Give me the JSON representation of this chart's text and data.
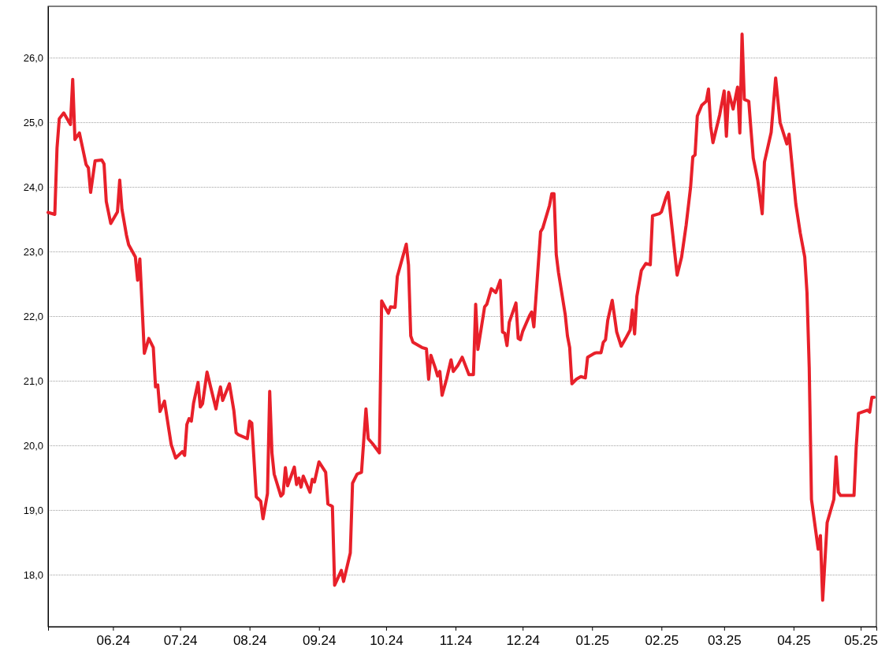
{
  "chart_data": {
    "type": "line",
    "xlim": [
      "2024-05-03",
      "2025-05-08"
    ],
    "ylim": [
      17.2,
      26.8
    ],
    "xticks": [
      {
        "value": "2024-06-01",
        "label": "06.24"
      },
      {
        "value": "2024-07-01",
        "label": "07.24"
      },
      {
        "value": "2024-08-01",
        "label": "08.24"
      },
      {
        "value": "2024-09-01",
        "label": "09.24"
      },
      {
        "value": "2024-10-01",
        "label": "10.24"
      },
      {
        "value": "2024-11-01",
        "label": "11.24"
      },
      {
        "value": "2024-12-01",
        "label": "12.24"
      },
      {
        "value": "2025-01-01",
        "label": "01.25"
      },
      {
        "value": "2025-02-01",
        "label": "02.25"
      },
      {
        "value": "2025-03-01",
        "label": "03.25"
      },
      {
        "value": "2025-04-01",
        "label": "04.25"
      },
      {
        "value": "2025-05-01",
        "label": "05.25"
      }
    ],
    "yticks": [
      {
        "value": 18,
        "label": "18,0"
      },
      {
        "value": 19,
        "label": "19,0"
      },
      {
        "value": 20,
        "label": "20,0"
      },
      {
        "value": 21,
        "label": "21,0"
      },
      {
        "value": 22,
        "label": "22,0"
      },
      {
        "value": 23,
        "label": "23,0"
      },
      {
        "value": 24,
        "label": "24,0"
      },
      {
        "value": 25,
        "label": "25,0"
      },
      {
        "value": 26,
        "label": "26,0"
      }
    ],
    "grid": "y",
    "legend": false,
    "marker": "none",
    "line_style": "solid",
    "x": [
      "2024-05-03",
      "2024-05-06",
      "2024-05-07",
      "2024-05-08",
      "2024-05-10",
      "2024-05-13",
      "2024-05-14",
      "2024-05-15",
      "2024-05-17",
      "2024-05-20",
      "2024-05-21",
      "2024-05-22",
      "2024-05-24",
      "2024-05-27",
      "2024-05-28",
      "2024-05-29",
      "2024-05-31",
      "2024-06-03",
      "2024-06-04",
      "2024-06-05",
      "2024-06-07",
      "2024-06-08",
      "2024-06-11",
      "2024-06-12",
      "2024-06-13",
      "2024-06-15",
      "2024-06-17",
      "2024-06-19",
      "2024-06-20",
      "2024-06-21",
      "2024-06-22",
      "2024-06-24",
      "2024-06-26",
      "2024-06-27",
      "2024-06-29",
      "2024-07-02",
      "2024-07-03",
      "2024-07-04",
      "2024-07-05",
      "2024-07-06",
      "2024-07-07",
      "2024-07-09",
      "2024-07-10",
      "2024-07-11",
      "2024-07-13",
      "2024-07-17",
      "2024-07-18",
      "2024-07-19",
      "2024-07-20",
      "2024-07-23",
      "2024-07-25",
      "2024-07-26",
      "2024-07-27",
      "2024-07-31",
      "2024-08-01",
      "2024-08-02",
      "2024-08-04",
      "2024-08-06",
      "2024-08-07",
      "2024-08-09",
      "2024-08-10",
      "2024-08-11",
      "2024-08-12",
      "2024-08-15",
      "2024-08-16",
      "2024-08-17",
      "2024-08-18",
      "2024-08-21",
      "2024-08-22",
      "2024-08-23",
      "2024-08-24",
      "2024-08-25",
      "2024-08-28",
      "2024-08-29",
      "2024-08-30",
      "2024-09-01",
      "2024-09-04",
      "2024-09-05",
      "2024-09-07",
      "2024-09-08",
      "2024-09-11",
      "2024-09-12",
      "2024-09-15",
      "2024-09-16",
      "2024-09-18",
      "2024-09-20",
      "2024-09-22",
      "2024-09-23",
      "2024-09-25",
      "2024-09-28",
      "2024-09-29",
      "2024-10-02",
      "2024-10-03",
      "2024-10-05",
      "2024-10-06",
      "2024-10-10",
      "2024-10-11",
      "2024-10-12",
      "2024-10-13",
      "2024-10-17",
      "2024-10-19",
      "2024-10-20",
      "2024-10-21",
      "2024-10-23",
      "2024-10-24",
      "2024-10-25",
      "2024-10-26",
      "2024-10-28",
      "2024-10-30",
      "2024-10-31",
      "2024-11-02",
      "2024-11-04",
      "2024-11-07",
      "2024-11-09",
      "2024-11-10",
      "2024-11-11",
      "2024-11-14",
      "2024-11-15",
      "2024-11-17",
      "2024-11-19",
      "2024-11-21",
      "2024-11-22",
      "2024-11-23",
      "2024-11-24",
      "2024-11-25",
      "2024-11-28",
      "2024-11-29",
      "2024-11-30",
      "2024-12-01",
      "2024-12-04",
      "2024-12-05",
      "2024-12-06",
      "2024-12-09",
      "2024-12-10",
      "2024-12-13",
      "2024-12-14",
      "2024-12-15",
      "2024-12-16",
      "2024-12-17",
      "2024-12-20",
      "2024-12-21",
      "2024-12-22",
      "2024-12-23",
      "2024-12-25",
      "2024-12-27",
      "2024-12-29",
      "2024-12-30",
      "2025-01-02",
      "2025-01-03",
      "2025-01-05",
      "2025-01-06",
      "2025-01-07",
      "2025-01-08",
      "2025-01-10",
      "2025-01-11",
      "2025-01-12",
      "2025-01-14",
      "2025-01-16",
      "2025-01-18",
      "2025-01-19",
      "2025-01-20",
      "2025-01-21",
      "2025-01-23",
      "2025-01-25",
      "2025-01-27",
      "2025-01-28",
      "2025-01-31",
      "2025-02-01",
      "2025-02-03",
      "2025-02-04",
      "2025-02-08",
      "2025-02-10",
      "2025-02-12",
      "2025-02-14",
      "2025-02-15",
      "2025-02-16",
      "2025-02-17",
      "2025-02-19",
      "2025-02-21",
      "2025-02-22",
      "2025-02-23",
      "2025-02-24",
      "2025-02-27",
      "2025-03-01",
      "2025-03-02",
      "2025-03-03",
      "2025-03-05",
      "2025-03-07",
      "2025-03-08",
      "2025-03-09",
      "2025-03-10",
      "2025-03-12",
      "2025-03-13",
      "2025-03-14",
      "2025-03-16",
      "2025-03-18",
      "2025-03-19",
      "2025-03-22",
      "2025-03-24",
      "2025-03-26",
      "2025-03-29",
      "2025-03-30",
      "2025-04-02",
      "2025-04-04",
      "2025-04-06",
      "2025-04-07",
      "2025-04-08",
      "2025-04-09",
      "2025-04-12",
      "2025-04-13",
      "2025-04-14",
      "2025-04-16",
      "2025-04-19",
      "2025-04-20",
      "2025-04-21",
      "2025-04-22",
      "2025-04-28",
      "2025-04-29",
      "2025-04-30",
      "2025-05-04",
      "2025-05-05",
      "2025-05-06",
      "2025-05-07"
    ],
    "series": [
      {
        "color": "#e8202a",
        "values": [
          23.61,
          23.58,
          24.61,
          25.06,
          25.15,
          24.97,
          25.67,
          24.74,
          24.84,
          24.35,
          24.3,
          23.92,
          24.41,
          24.42,
          24.36,
          23.78,
          23.44,
          23.62,
          24.11,
          23.66,
          23.26,
          23.11,
          22.92,
          22.56,
          22.89,
          21.43,
          21.66,
          21.52,
          20.91,
          20.94,
          20.53,
          20.69,
          20.24,
          20.02,
          19.81,
          19.91,
          19.85,
          20.33,
          20.42,
          20.38,
          20.66,
          20.98,
          20.6,
          20.65,
          21.14,
          20.57,
          20.76,
          20.91,
          20.7,
          20.96,
          20.54,
          20.2,
          20.17,
          20.11,
          20.38,
          20.35,
          19.21,
          19.14,
          18.87,
          19.26,
          20.84,
          19.89,
          19.56,
          19.22,
          19.26,
          19.66,
          19.38,
          19.67,
          19.4,
          19.5,
          19.36,
          19.53,
          19.28,
          19.48,
          19.44,
          19.75,
          19.59,
          19.1,
          19.06,
          17.84,
          18.07,
          17.9,
          18.34,
          19.42,
          19.56,
          19.59,
          20.57,
          20.11,
          20.03,
          19.89,
          22.24,
          22.05,
          22.15,
          22.14,
          22.62,
          23.12,
          22.8,
          21.7,
          21.6,
          21.52,
          21.5,
          21.03,
          21.4,
          21.2,
          21.08,
          21.15,
          20.78,
          21.03,
          21.33,
          21.15,
          21.24,
          21.37,
          21.1,
          21.1,
          22.19,
          21.49,
          22.15,
          22.19,
          22.43,
          22.37,
          22.56,
          21.76,
          21.74,
          21.55,
          21.91,
          22.21,
          21.66,
          21.64,
          21.77,
          22.01,
          22.07,
          21.84,
          23.31,
          23.37,
          23.72,
          23.9,
          23.9,
          22.96,
          22.68,
          22.03,
          21.7,
          21.52,
          20.96,
          21.03,
          21.07,
          21.05,
          21.37,
          21.43,
          21.44,
          21.44,
          21.6,
          21.64,
          21.94,
          22.25,
          22.01,
          21.76,
          21.54,
          21.66,
          21.79,
          22.1,
          21.73,
          22.31,
          22.71,
          22.82,
          22.8,
          23.56,
          23.59,
          23.62,
          23.84,
          23.92,
          22.64,
          22.92,
          23.41,
          24.0,
          24.47,
          24.5,
          25.1,
          25.27,
          25.33,
          25.52,
          24.94,
          24.69,
          25.12,
          25.49,
          24.79,
          25.47,
          25.21,
          25.55,
          24.84,
          26.37,
          25.36,
          25.33,
          24.88,
          24.45,
          24.11,
          23.59,
          24.39,
          24.85,
          25.69,
          25.0,
          24.67,
          24.82,
          23.74,
          23.29,
          22.92,
          22.37,
          21.21,
          19.17,
          18.4,
          18.61,
          17.61,
          18.81,
          19.17,
          19.83,
          19.28,
          19.23,
          19.23,
          19.99,
          20.5,
          20.55,
          20.52,
          20.75,
          20.75
        ]
      }
    ]
  }
}
